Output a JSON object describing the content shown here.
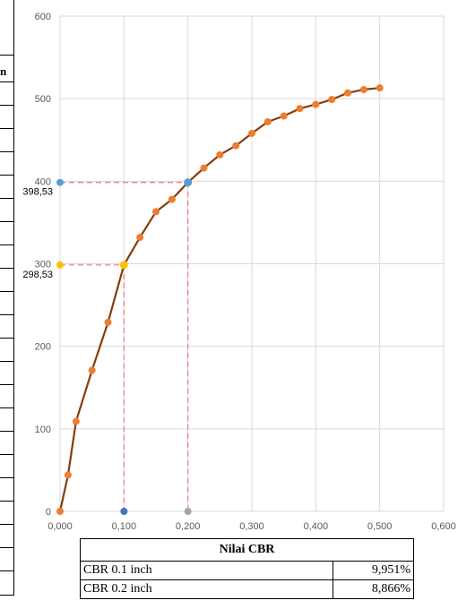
{
  "chart_data": {
    "type": "line",
    "xlim": [
      0,
      0.6
    ],
    "ylim": [
      0,
      600
    ],
    "x_ticks": [
      "0,000",
      "0,100",
      "0,200",
      "0,300",
      "0,400",
      "0,500",
      "0,600"
    ],
    "y_ticks": [
      "0",
      "100",
      "200",
      "300",
      "400",
      "500",
      "600"
    ],
    "grid": true,
    "series": [
      {
        "color": "#843c0c",
        "marker_color": "#ed7d31",
        "x": [
          0,
          0.0125,
          0.025,
          0.05,
          0.075,
          0.1,
          0.125,
          0.15,
          0.175,
          0.2,
          0.225,
          0.25,
          0.275,
          0.3,
          0.325,
          0.35,
          0.375,
          0.4,
          0.425,
          0.45,
          0.475,
          0.5
        ],
        "y": [
          0,
          44,
          109,
          171,
          229,
          298.53,
          332,
          363,
          378,
          398.53,
          416,
          432,
          443,
          458,
          472,
          479,
          488,
          493,
          499,
          507,
          511,
          513
        ]
      }
    ],
    "highlights": [
      {
        "x": 0.1,
        "y": 298.53,
        "label": "298,53",
        "y_marker_color": "#ffc000",
        "x_marker_color": "#4472c4",
        "point_color": "#ffc000"
      },
      {
        "x": 0.2,
        "y": 398.53,
        "label": "398,53",
        "y_marker_color": "#5b9bd5",
        "x_marker_color": "#a5a5a5",
        "point_color": "#5b9bd5"
      }
    ],
    "guide_color": "#ff7c80"
  },
  "left_table": {
    "header_fragment": "n"
  },
  "cbr_table": {
    "title": "Nilai CBR",
    "rows": [
      {
        "label": "CBR 0.1 inch",
        "value": "9,951%"
      },
      {
        "label": "CBR 0.2 inch",
        "value": "8,866%"
      }
    ]
  }
}
